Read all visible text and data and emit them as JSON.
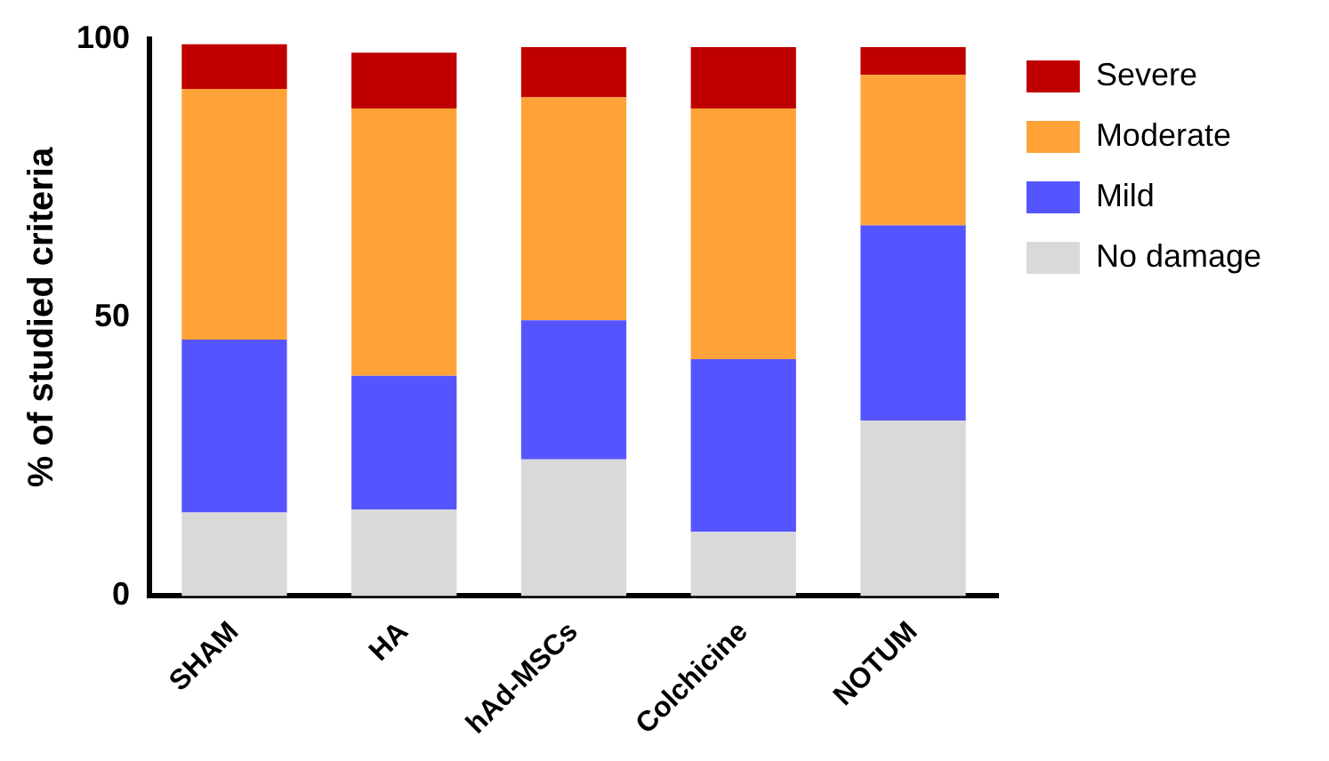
{
  "chart_data": {
    "type": "bar",
    "stacked": true,
    "ylabel": "% of studied criteria",
    "categories": [
      "SHAM",
      "HA",
      "hAd-MSCs",
      "Colchicine",
      "NOTUM"
    ],
    "series": [
      {
        "name": "No damage",
        "color": "#d9d9d9",
        "values": [
          15,
          15.5,
          24.5,
          11.5,
          31.5
        ]
      },
      {
        "name": "Mild",
        "color": "#5555ff",
        "values": [
          31,
          24,
          25,
          31,
          35
        ]
      },
      {
        "name": "Moderate",
        "color": "#ffa238",
        "values": [
          45,
          48,
          40,
          45,
          27
        ]
      },
      {
        "name": "Severe",
        "color": "#c00000",
        "values": [
          8,
          10,
          9,
          11,
          5
        ]
      }
    ],
    "ylim": [
      0,
      100
    ],
    "yticks": [
      0,
      50,
      100
    ],
    "grid": false,
    "legend": "right"
  }
}
